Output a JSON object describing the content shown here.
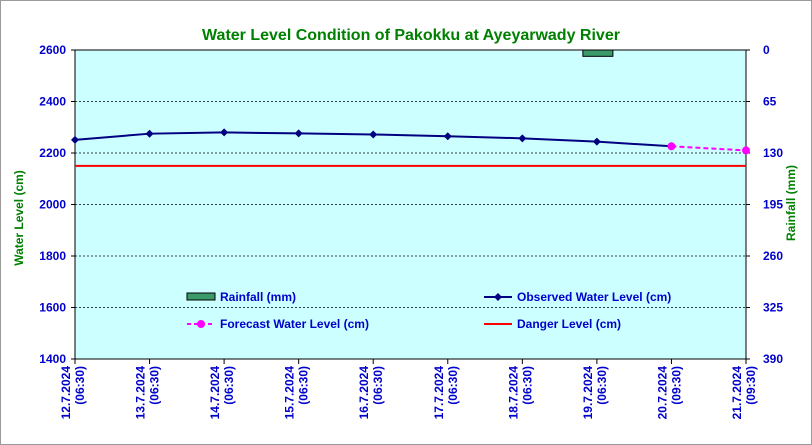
{
  "chart_data": {
    "type": "line",
    "title": "Water Level Condition of Pakokku at Ayeyarwady River",
    "ylabel": "Water Level (cm)",
    "y2label": "Rainfall (mm)",
    "ylim": [
      1400,
      2600
    ],
    "y2lim": [
      0,
      390
    ],
    "y2_inverted": true,
    "yticks": [
      "1400",
      "1600",
      "1800",
      "2000",
      "2200",
      "2400",
      "2600"
    ],
    "y2ticks": [
      "0",
      "65",
      "130",
      "195",
      "260",
      "325",
      "390"
    ],
    "x_labels": [
      {
        "date": "12.7.2024",
        "time": "(06:30)"
      },
      {
        "date": "13.7.2024",
        "time": "(06:30)"
      },
      {
        "date": "14.7.2024",
        "time": "(06:30)"
      },
      {
        "date": "15.7.2024",
        "time": "(06:30)"
      },
      {
        "date": "16.7.2024",
        "time": "(06:30)"
      },
      {
        "date": "17.7.2024",
        "time": "(06:30)"
      },
      {
        "date": "18.7.2024",
        "time": "(06:30)"
      },
      {
        "date": "19.7.2024",
        "time": "(06:30)"
      },
      {
        "date": "20.7.2024",
        "time": "(09:30)"
      },
      {
        "date": "21.7.2024",
        "time": "(09:30)"
      }
    ],
    "series": [
      {
        "name": "Observed Water Level (cm)",
        "color": "#000080",
        "marker": "diamond",
        "style": "solid",
        "points": [
          [
            0,
            2251
          ],
          [
            1,
            2275
          ],
          [
            2,
            2280
          ],
          [
            3,
            2276
          ],
          [
            4,
            2272
          ],
          [
            5,
            2265
          ],
          [
            6,
            2257
          ],
          [
            7,
            2244
          ],
          [
            8,
            2226
          ]
        ]
      },
      {
        "name": "Forecast Water Level (cm)",
        "color": "#ff00ff",
        "marker": "circle",
        "style": "dashed",
        "points": [
          [
            8,
            2226
          ],
          [
            9,
            2210
          ]
        ]
      },
      {
        "name": "Danger Level (cm)",
        "color": "#ff0000",
        "style": "solid",
        "level": 2150
      },
      {
        "name": "Rainfall (mm)",
        "color": "#3a9a6a",
        "kind": "bar",
        "bars": [
          {
            "x": 7.0,
            "value": 8
          }
        ]
      }
    ],
    "legend": [
      {
        "label": "Rainfall (mm)",
        "kind": "rain"
      },
      {
        "label": "Observed Water Level (cm)",
        "kind": "observed"
      },
      {
        "label": "Forecast Water Level (cm)",
        "kind": "forecast"
      },
      {
        "label": "Danger Level (cm)",
        "kind": "danger"
      }
    ],
    "grid": true,
    "plot_background": "#ccffff",
    "colors": {
      "title": "#008000",
      "axis_text": "#0000cc",
      "rain_label": "#008000"
    }
  }
}
